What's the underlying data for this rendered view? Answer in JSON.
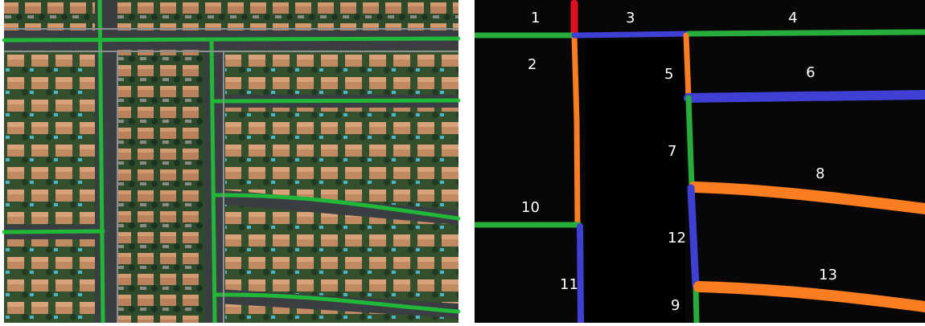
{
  "palette": {
    "green": "#27ad3b",
    "blue": "#3f3fd4",
    "orange": "#fb7d21",
    "red": "#e01020",
    "background": "#070707",
    "asphalt": "#3a3d42",
    "roof": "#b9825c",
    "lawn": "#2f4a2a",
    "overlay": "#1fc63a"
  },
  "right_panel": {
    "segments": [
      {
        "id": "1",
        "label": "1",
        "color": "green"
      },
      {
        "id": "2",
        "label": "2",
        "color": "orange"
      },
      {
        "id": "3",
        "label": "3",
        "color": "blue"
      },
      {
        "id": "4",
        "label": "4",
        "color": "green"
      },
      {
        "id": "5",
        "label": "5",
        "color": "orange"
      },
      {
        "id": "6",
        "label": "6",
        "color": "blue"
      },
      {
        "id": "7",
        "label": "7",
        "color": "green"
      },
      {
        "id": "8",
        "label": "8",
        "color": "orange"
      },
      {
        "id": "9",
        "label": "9",
        "color": "green"
      },
      {
        "id": "10",
        "label": "10",
        "color": "green"
      },
      {
        "id": "11",
        "label": "11",
        "color": "blue"
      },
      {
        "id": "12",
        "label": "12",
        "color": "blue"
      },
      {
        "id": "13",
        "label": "13",
        "color": "orange"
      }
    ]
  }
}
